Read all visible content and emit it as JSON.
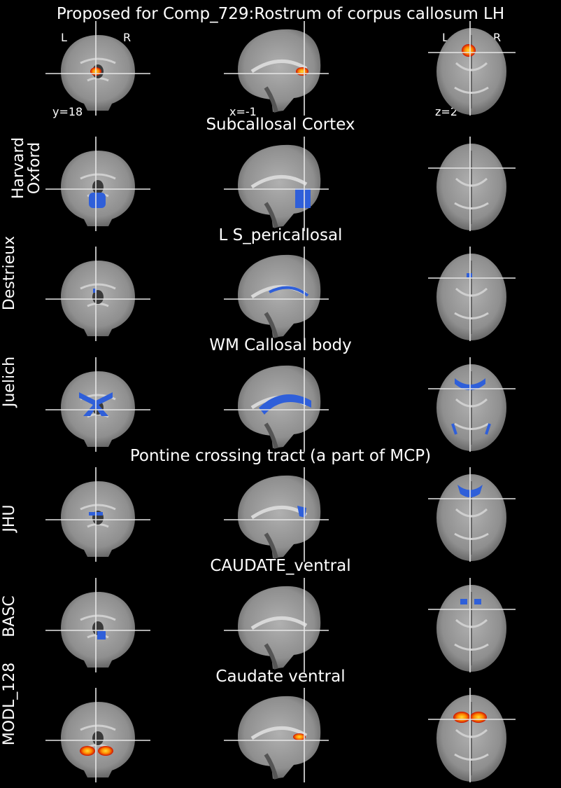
{
  "title": "Proposed for Comp_729:Rostrum of corpus callosum LH",
  "orientation": {
    "left": "L",
    "right": "R"
  },
  "coords": {
    "y": "y=18",
    "x": "x=-1",
    "z": "z=2"
  },
  "rows": [
    {
      "atlas": "",
      "region": "",
      "overlay": "hot"
    },
    {
      "atlas": "Harvard\nOxford",
      "region": "Subcallosal Cortex",
      "overlay": "blue"
    },
    {
      "atlas": "Destrieux",
      "region": "L S_pericallosal",
      "overlay": "blue"
    },
    {
      "atlas": "Juelich",
      "region": "WM Callosal body",
      "overlay": "blue"
    },
    {
      "atlas": "JHU",
      "region": "Pontine crossing tract (a part of MCP)",
      "overlay": "blue"
    },
    {
      "atlas": "BASC",
      "region": "CAUDATE_ventral",
      "overlay": "blue"
    },
    {
      "atlas": "MODL_128",
      "region": "Caudate ventral",
      "overlay": "hot"
    }
  ],
  "colors": {
    "background": "#000000",
    "blue": "#2f5fd9",
    "hot_outer": "#cc1100",
    "hot_inner": "#ffdd33",
    "crosshair": "#e6e6e6"
  }
}
